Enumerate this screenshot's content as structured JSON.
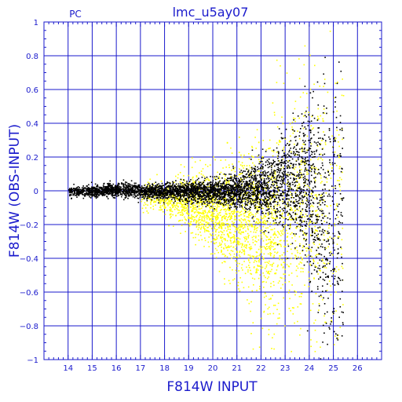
{
  "chart_data": {
    "type": "scatter",
    "title": "lmc_u5ay07",
    "corner_label": "PC",
    "xlabel": "F814W INPUT",
    "ylabel": "F814W (OBS-INPUT)",
    "xlim": [
      13,
      27
    ],
    "ylim": [
      -1,
      1
    ],
    "xticks": [
      14,
      15,
      16,
      17,
      18,
      19,
      20,
      21,
      22,
      23,
      24,
      25,
      26
    ],
    "yticks": [
      -1,
      -0.8,
      -0.6,
      -0.4,
      -0.2,
      0,
      0.2,
      0.4,
      0.6,
      0.8,
      1
    ],
    "ytick_labels": [
      "−1",
      "−0.8",
      "−0.6",
      "−0.4",
      "−0.2",
      "0",
      "0.2",
      "0.4",
      "0.6",
      "0.8",
      "1"
    ],
    "grid": true,
    "colors": {
      "axis": "#1a1acc",
      "grid": "#1a1acc",
      "series_black": "#000000",
      "series_yellow": "#ffff00"
    },
    "series": [
      {
        "color": "#ffff00",
        "density_profile": [
          {
            "x": 17.0,
            "center": -0.03,
            "spread": 0.04,
            "weight": 0.15
          },
          {
            "x": 18.0,
            "center": -0.04,
            "spread": 0.05,
            "weight": 0.4
          },
          {
            "x": 19.0,
            "center": -0.07,
            "spread": 0.08,
            "weight": 0.8
          },
          {
            "x": 20.0,
            "center": -0.11,
            "spread": 0.12,
            "weight": 1.0
          },
          {
            "x": 21.0,
            "center": -0.16,
            "spread": 0.18,
            "weight": 1.0
          },
          {
            "x": 22.0,
            "center": -0.2,
            "spread": 0.24,
            "weight": 0.95
          },
          {
            "x": 23.0,
            "center": -0.2,
            "spread": 0.32,
            "weight": 0.8
          },
          {
            "x": 24.0,
            "center": -0.1,
            "spread": 0.4,
            "weight": 0.6
          },
          {
            "x": 25.0,
            "center": -0.2,
            "spread": 0.45,
            "weight": 0.3
          }
        ]
      },
      {
        "color": "#000000",
        "density_profile": [
          {
            "x": 14.0,
            "center": 0.0,
            "spread": 0.012,
            "weight": 0.5
          },
          {
            "x": 15.0,
            "center": 0.0,
            "spread": 0.015,
            "weight": 0.8
          },
          {
            "x": 16.0,
            "center": 0.01,
            "spread": 0.02,
            "weight": 0.9
          },
          {
            "x": 17.0,
            "center": 0.0,
            "spread": 0.02,
            "weight": 0.9
          },
          {
            "x": 18.0,
            "center": 0.0,
            "spread": 0.025,
            "weight": 1.0
          },
          {
            "x": 19.0,
            "center": 0.0,
            "spread": 0.03,
            "weight": 1.0
          },
          {
            "x": 20.0,
            "center": 0.0,
            "spread": 0.04,
            "weight": 1.0
          },
          {
            "x": 21.0,
            "center": 0.0,
            "spread": 0.05,
            "weight": 1.0
          },
          {
            "x": 22.0,
            "center": 0.02,
            "spread": 0.08,
            "weight": 1.0
          },
          {
            "x": 23.0,
            "center": 0.04,
            "spread": 0.14,
            "weight": 1.0
          },
          {
            "x": 24.0,
            "center": 0.05,
            "spread": 0.25,
            "weight": 1.0
          },
          {
            "x": 25.0,
            "center": -0.2,
            "spread": 0.4,
            "weight": 0.6
          }
        ]
      }
    ]
  }
}
